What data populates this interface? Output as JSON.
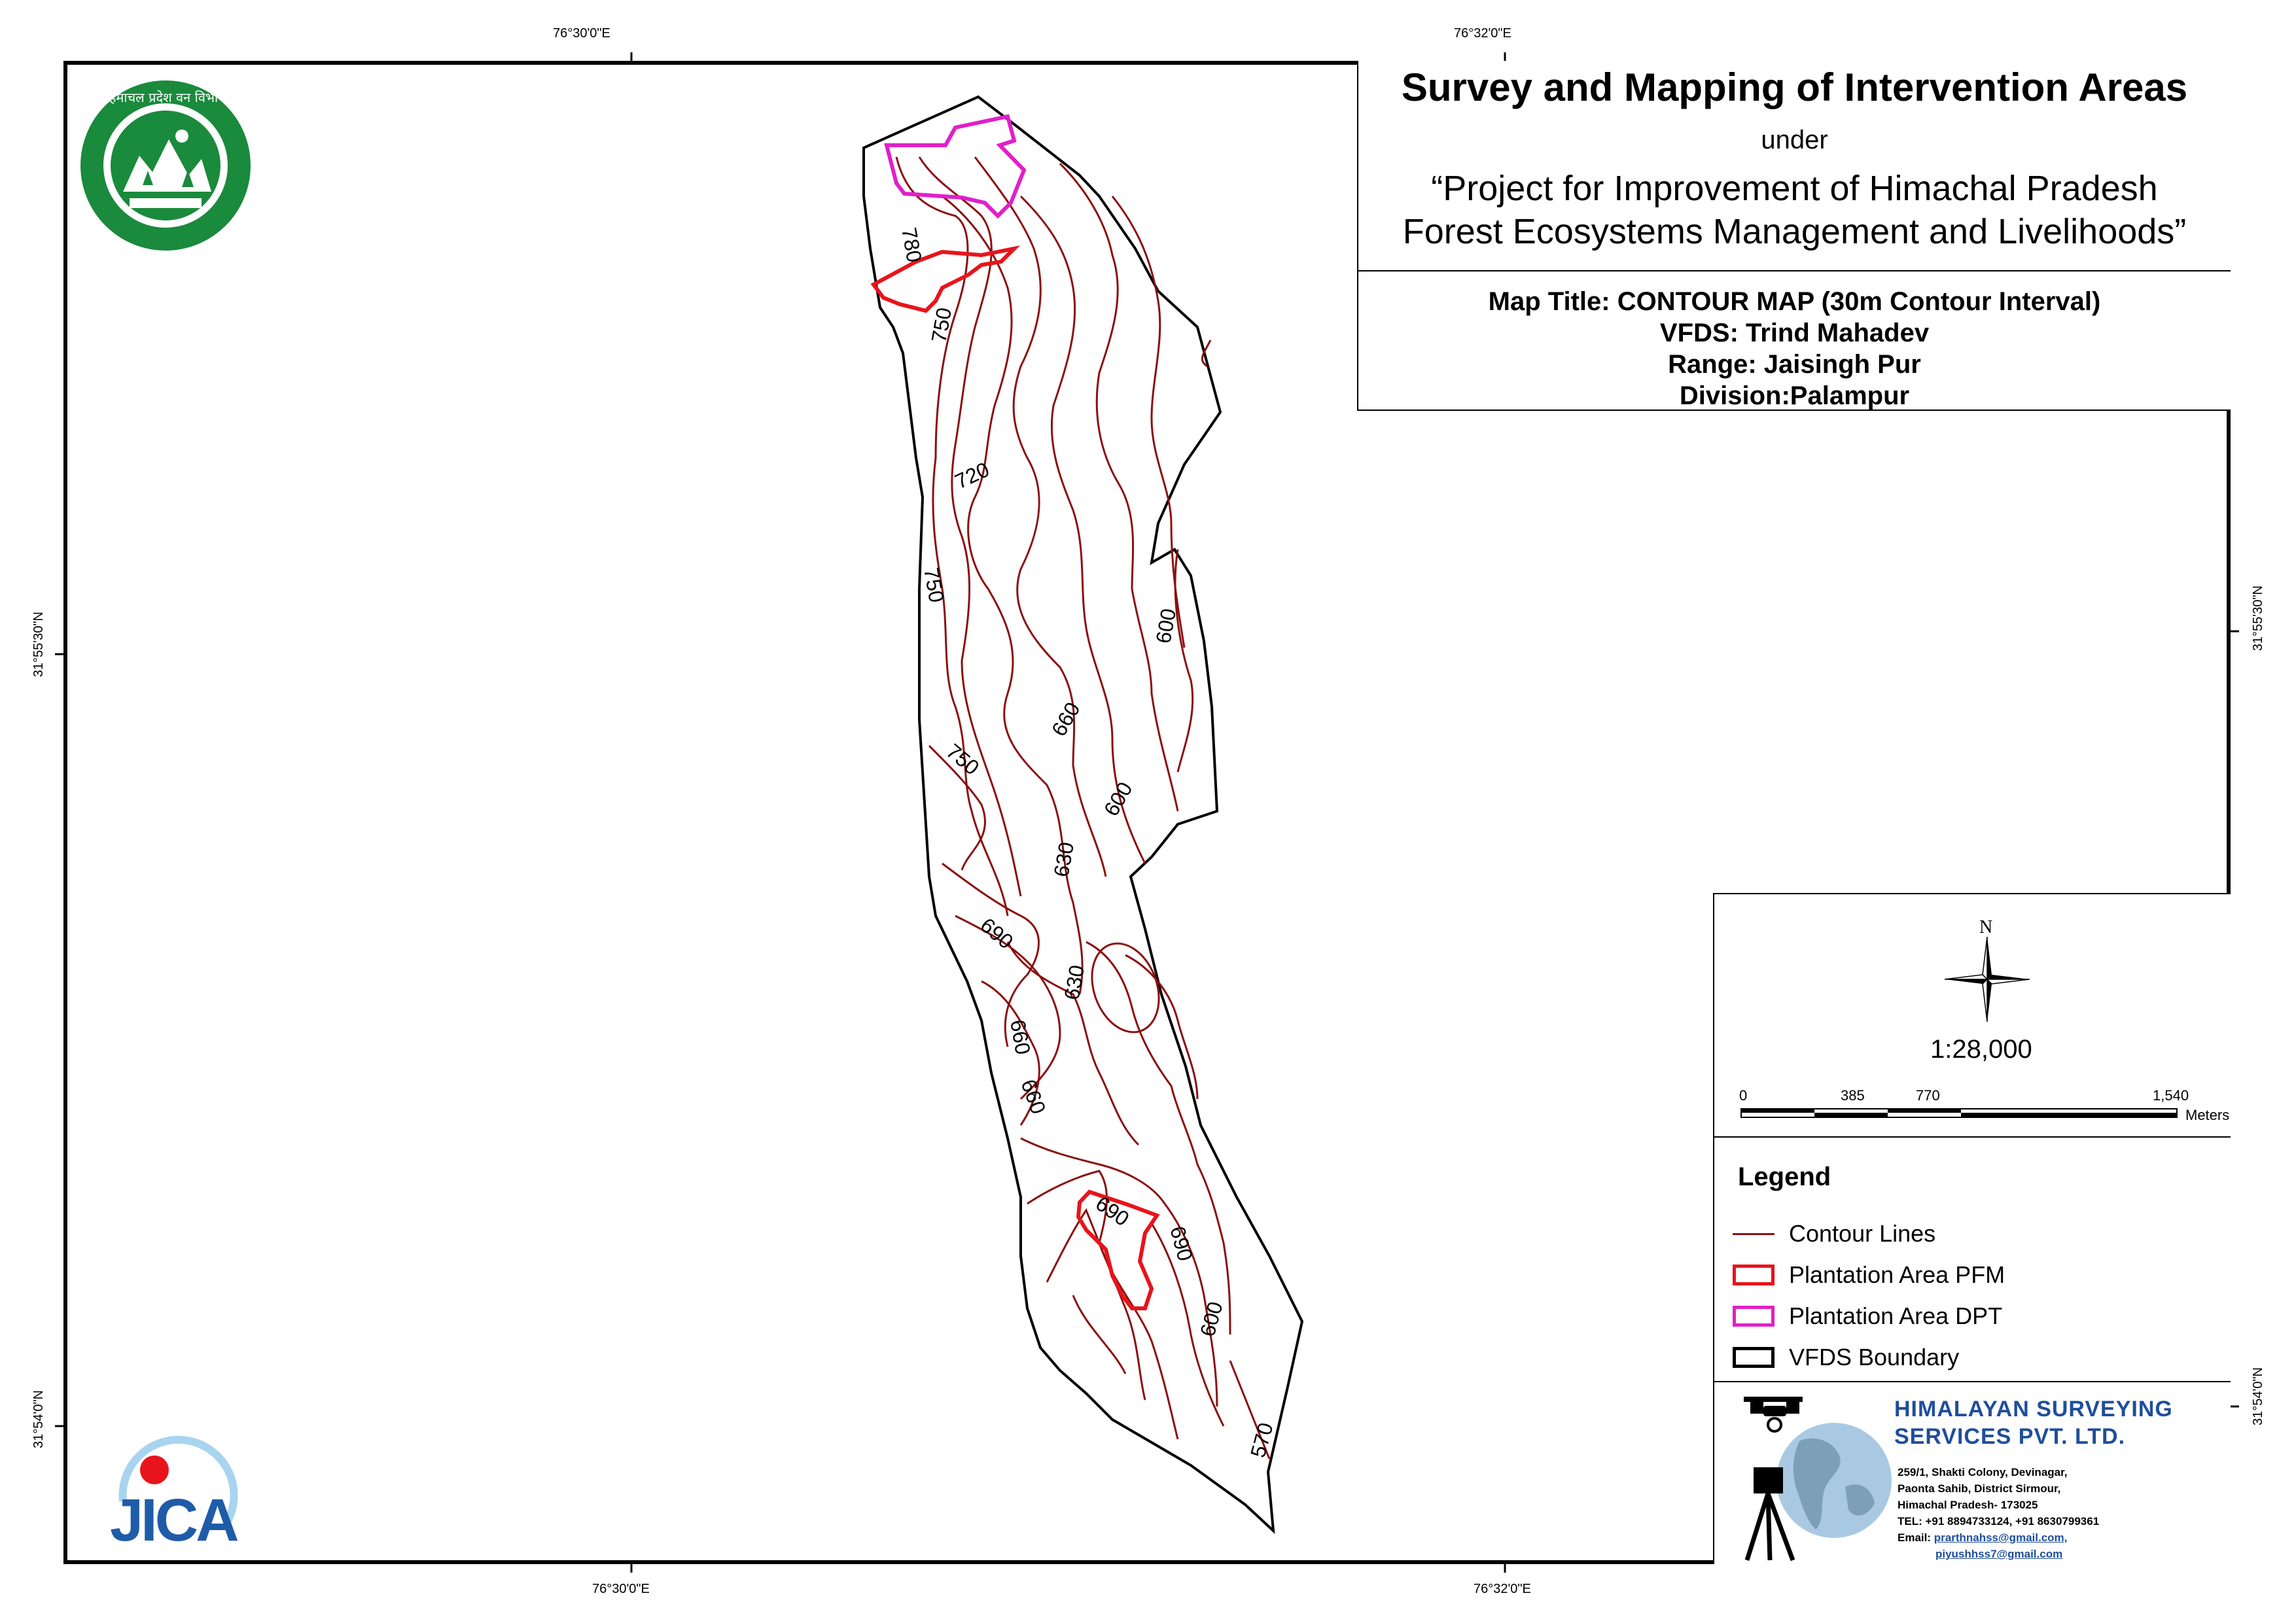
{
  "header": {
    "title": "Survey and Mapping of Intervention Areas",
    "under": "under",
    "project_line1": "“Project for Improvement of Himachal Pradesh",
    "project_line2": "Forest Ecosystems Management and Livelihoods”"
  },
  "map_info": {
    "map_title": "Map Title: CONTOUR MAP (30m Contour Interval)",
    "vfds": "VFDS: Trind Mahadev",
    "range": "Range: Jaisingh Pur",
    "division": "Division:Palampur"
  },
  "coordinates": {
    "top_left": "76°30'0\"E",
    "top_right": "76°32'0\"E",
    "bottom_left": "76°30'0\"E",
    "bottom_right": "76°32'0\"E",
    "left_upper": "31°55'30\"N",
    "left_lower": "31°54'0\"N",
    "right_upper": "31°55'30\"N",
    "right_lower": "31°54'0\"N"
  },
  "north_arrow": {
    "label": "N"
  },
  "scale": {
    "ratio": "1:28,000",
    "ticks": [
      "0",
      "385",
      "770",
      "1,540"
    ],
    "unit": "Meters"
  },
  "legend": {
    "title": "Legend",
    "items": [
      {
        "label": "Contour Lines",
        "color": "#8b1010"
      },
      {
        "label": "Plantation Area PFM",
        "color": "#e8141b"
      },
      {
        "label": "Plantation Area DPT",
        "color": "#e020c8"
      },
      {
        "label": "VFDS Boundary",
        "color": "#000000"
      }
    ]
  },
  "company": {
    "name_line1": "HIMALAYAN SURVEYING",
    "name_line2": "SERVICES PVT. LTD.",
    "address_line1": "259/1, Shakti Colony, Devinagar,",
    "address_line2": "Paonta Sahib, District Sirmour,",
    "address_line3": "Himachal Pradesh- 173025",
    "phone": "TEL: +91 8894733124, +91 8630799361",
    "email_label": "Email:",
    "email1": "prarthnahss@gmail.com,",
    "email2": "piyushhss7@gmail.com"
  },
  "logos": {
    "forest_dept_text": "हिमाचल प्रदेश वन विभाग",
    "jica_text": "JICA"
  },
  "contour_labels": [
    "780",
    "750",
    "720",
    "750",
    "600",
    "660",
    "750",
    "600",
    "630",
    "690",
    "630",
    "660",
    "660",
    "690",
    "690",
    "600",
    "570"
  ]
}
